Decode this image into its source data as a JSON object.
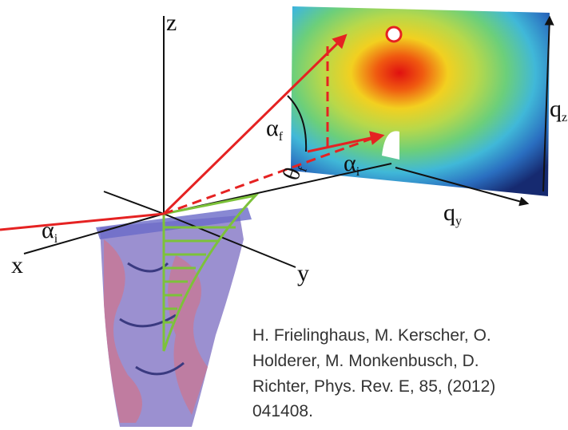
{
  "axes": {
    "x": "x",
    "y": "y",
    "z": "z"
  },
  "angles": {
    "alpha_f": {
      "symbol": "α",
      "sub": "f"
    },
    "alpha_i_incoming": {
      "symbol": "α",
      "sub": "i"
    },
    "alpha_i_detector": {
      "symbol": "α",
      "sub": "i"
    },
    "theta_f": {
      "symbol": "θ",
      "sub": "f"
    }
  },
  "detector": {
    "qz": {
      "symbol": "q",
      "sub": "z"
    },
    "qy": {
      "symbol": "q",
      "sub": "y"
    }
  },
  "citation": {
    "lines": [
      "H. Frielinghaus, M. Kerscher, O.",
      "Holderer, M. Monkenbusch, D.",
      "Richter, Phys. Rev. E, 85, (2012)",
      "041408."
    ]
  }
}
